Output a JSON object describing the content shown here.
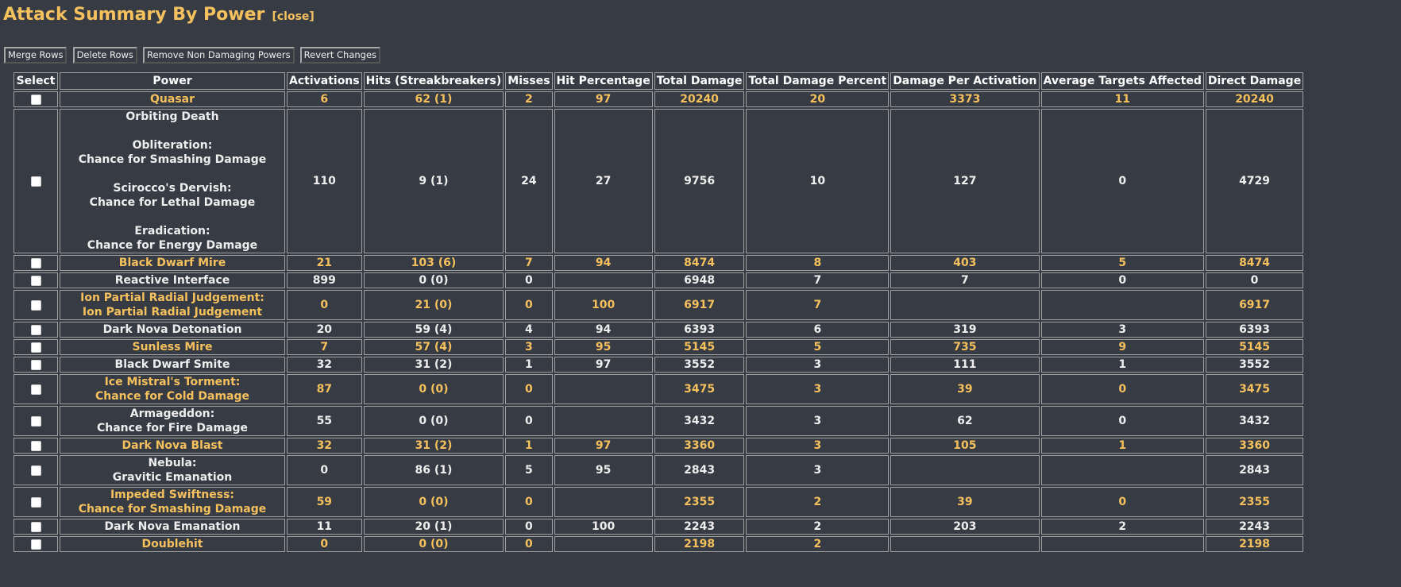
{
  "title": "Attack Summary By Power",
  "close_label": "[close]",
  "toolbar": {
    "merge_label": "Merge Rows",
    "delete_label": "Delete Rows",
    "remove_label": "Remove Non Damaging Powers",
    "revert_label": "Revert Changes"
  },
  "table": {
    "headers": [
      "Select",
      "Power",
      "Activations",
      "Hits (Streakbreakers)",
      "Misses",
      "Hit Percentage",
      "Total Damage",
      "Total Damage Percent",
      "Damage Per Activation",
      "Average Targets Affected",
      "Direct Damage"
    ],
    "rows": [
      {
        "power": "Quasar",
        "activations": "6",
        "hits": "62 (1)",
        "misses": "2",
        "hit_pct": "97",
        "total": "20240",
        "total_pct": "20",
        "dpa": "3373",
        "avg_targets": "11",
        "direct": "20240"
      },
      {
        "power": "Orbiting Death\n\nObliteration:\nChance for Smashing Damage\n\nScirocco's Dervish:\nChance for Lethal Damage\n\nEradication:\nChance for Energy Damage",
        "activations": "110",
        "hits": "9 (1)",
        "misses": "24",
        "hit_pct": "27",
        "total": "9756",
        "total_pct": "10",
        "dpa": "127",
        "avg_targets": "0",
        "direct": "4729"
      },
      {
        "power": "Black Dwarf Mire",
        "activations": "21",
        "hits": "103 (6)",
        "misses": "7",
        "hit_pct": "94",
        "total": "8474",
        "total_pct": "8",
        "dpa": "403",
        "avg_targets": "5",
        "direct": "8474"
      },
      {
        "power": "Reactive Interface",
        "activations": "899",
        "hits": "0 (0)",
        "misses": "0",
        "hit_pct": "",
        "total": "6948",
        "total_pct": "7",
        "dpa": "7",
        "avg_targets": "0",
        "direct": "0"
      },
      {
        "power": "Ion Partial Radial Judgement:\nIon Partial Radial Judgement",
        "activations": "0",
        "hits": "21 (0)",
        "misses": "0",
        "hit_pct": "100",
        "total": "6917",
        "total_pct": "7",
        "dpa": "",
        "avg_targets": "",
        "direct": "6917"
      },
      {
        "power": "Dark Nova Detonation",
        "activations": "20",
        "hits": "59 (4)",
        "misses": "4",
        "hit_pct": "94",
        "total": "6393",
        "total_pct": "6",
        "dpa": "319",
        "avg_targets": "3",
        "direct": "6393"
      },
      {
        "power": "Sunless Mire",
        "activations": "7",
        "hits": "57 (4)",
        "misses": "3",
        "hit_pct": "95",
        "total": "5145",
        "total_pct": "5",
        "dpa": "735",
        "avg_targets": "9",
        "direct": "5145"
      },
      {
        "power": "Black Dwarf Smite",
        "activations": "32",
        "hits": "31 (2)",
        "misses": "1",
        "hit_pct": "97",
        "total": "3552",
        "total_pct": "3",
        "dpa": "111",
        "avg_targets": "1",
        "direct": "3552"
      },
      {
        "power": "Ice Mistral's Torment:\nChance for Cold Damage",
        "activations": "87",
        "hits": "0 (0)",
        "misses": "0",
        "hit_pct": "",
        "total": "3475",
        "total_pct": "3",
        "dpa": "39",
        "avg_targets": "0",
        "direct": "3475"
      },
      {
        "power": "Armageddon:\nChance for Fire Damage",
        "activations": "55",
        "hits": "0 (0)",
        "misses": "0",
        "hit_pct": "",
        "total": "3432",
        "total_pct": "3",
        "dpa": "62",
        "avg_targets": "0",
        "direct": "3432"
      },
      {
        "power": "Dark Nova Blast",
        "activations": "32",
        "hits": "31 (2)",
        "misses": "1",
        "hit_pct": "97",
        "total": "3360",
        "total_pct": "3",
        "dpa": "105",
        "avg_targets": "1",
        "direct": "3360"
      },
      {
        "power": "Nebula:\nGravitic Emanation",
        "activations": "0",
        "hits": "86 (1)",
        "misses": "5",
        "hit_pct": "95",
        "total": "2843",
        "total_pct": "3",
        "dpa": "",
        "avg_targets": "",
        "direct": "2843"
      },
      {
        "power": "Impeded Swiftness:\nChance for Smashing Damage",
        "activations": "59",
        "hits": "0 (0)",
        "misses": "0",
        "hit_pct": "",
        "total": "2355",
        "total_pct": "2",
        "dpa": "39",
        "avg_targets": "0",
        "direct": "2355"
      },
      {
        "power": "Dark Nova Emanation",
        "activations": "11",
        "hits": "20 (1)",
        "misses": "0",
        "hit_pct": "100",
        "total": "2243",
        "total_pct": "2",
        "dpa": "203",
        "avg_targets": "2",
        "direct": "2243"
      },
      {
        "power": "Doublehit",
        "activations": "0",
        "hits": "0 (0)",
        "misses": "0",
        "hit_pct": "",
        "total": "2198",
        "total_pct": "2",
        "dpa": "",
        "avg_targets": "",
        "direct": "2198"
      }
    ]
  },
  "colors": {
    "background": "#373b43",
    "accent": "#f5c15e",
    "text": "#eeeeee",
    "border": "#a0a0a0"
  }
}
